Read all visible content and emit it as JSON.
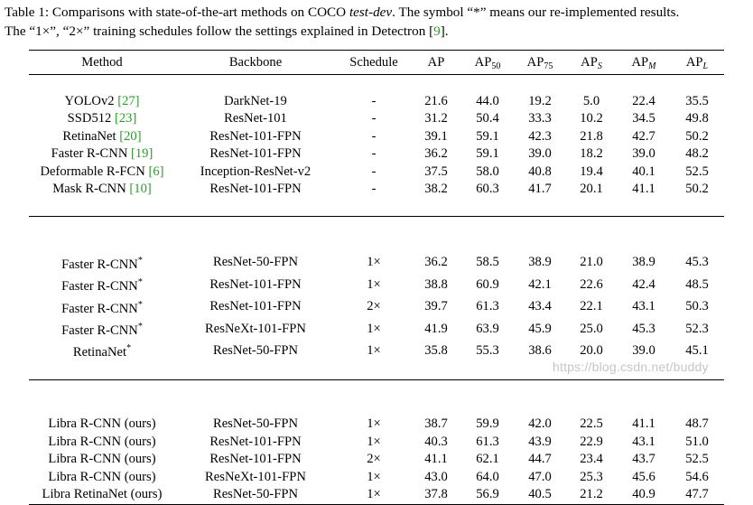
{
  "caption": {
    "prefix": "Table 1: Comparisons with state-of-the-art methods on COCO ",
    "italic": "test-dev",
    "suffix": ". The symbol “*” means our re-implemented results.",
    "line2_text": "The “1×”, “2×” training schedules follow the settings explained in Detectron [",
    "line2_ref": "9",
    "line2_end": "]."
  },
  "header": {
    "method": "Method",
    "backbone": "Backbone",
    "schedule": "Schedule",
    "ap": "AP",
    "ap50_base": "AP",
    "ap50_sub": "50",
    "ap75_base": "AP",
    "ap75_sub": "75",
    "aps_base": "AP",
    "aps_sub": "S",
    "apm_base": "AP",
    "apm_sub": "M",
    "apl_base": "AP",
    "apl_sub": "L"
  },
  "groups": [
    [
      {
        "method": "YOLOv2 ",
        "ref": "[27]",
        "backbone": "DarkNet-19",
        "schedule": "-",
        "ap": "21.6",
        "ap50": "44.0",
        "ap75": "19.2",
        "aps": "5.0",
        "apm": "22.4",
        "apl": "35.5"
      },
      {
        "method": "SSD512 ",
        "ref": "[23]",
        "backbone": "ResNet-101",
        "schedule": "-",
        "ap": "31.2",
        "ap50": "50.4",
        "ap75": "33.3",
        "aps": "10.2",
        "apm": "34.5",
        "apl": "49.8"
      },
      {
        "method": "RetinaNet ",
        "ref": "[20]",
        "backbone": "ResNet-101-FPN",
        "schedule": "-",
        "ap": "39.1",
        "ap50": "59.1",
        "ap75": "42.3",
        "aps": "21.8",
        "apm": "42.7",
        "apl": "50.2"
      },
      {
        "method": "Faster R-CNN ",
        "ref": "[19]",
        "backbone": "ResNet-101-FPN",
        "schedule": "-",
        "ap": "36.2",
        "ap50": "59.1",
        "ap75": "39.0",
        "aps": "18.2",
        "apm": "39.0",
        "apl": "48.2"
      },
      {
        "method": "Deformable R-FCN ",
        "ref": "[6]",
        "backbone": "Inception-ResNet-v2",
        "schedule": "-",
        "ap": "37.5",
        "ap50": "58.0",
        "ap75": "40.8",
        "aps": "19.4",
        "apm": "40.1",
        "apl": "52.5"
      },
      {
        "method": "Mask R-CNN ",
        "ref": "[10]",
        "backbone": "ResNet-101-FPN",
        "schedule": "-",
        "ap": "38.2",
        "ap50": "60.3",
        "ap75": "41.7",
        "aps": "20.1",
        "apm": "41.1",
        "apl": "50.2"
      }
    ],
    [
      {
        "method": "Faster R-CNN",
        "star": "*",
        "backbone": "ResNet-50-FPN",
        "schedule": "1×",
        "ap": "36.2",
        "ap50": "58.5",
        "ap75": "38.9",
        "aps": "21.0",
        "apm": "38.9",
        "apl": "45.3"
      },
      {
        "method": "Faster R-CNN",
        "star": "*",
        "backbone": "ResNet-101-FPN",
        "schedule": "1×",
        "ap": "38.8",
        "ap50": "60.9",
        "ap75": "42.1",
        "aps": "22.6",
        "apm": "42.4",
        "apl": "48.5"
      },
      {
        "method": "Faster R-CNN",
        "star": "*",
        "backbone": "ResNet-101-FPN",
        "schedule": "2×",
        "ap": "39.7",
        "ap50": "61.3",
        "ap75": "43.4",
        "aps": "22.1",
        "apm": "43.1",
        "apl": "50.3"
      },
      {
        "method": "Faster R-CNN",
        "star": "*",
        "backbone": "ResNeXt-101-FPN",
        "schedule": "1×",
        "ap": "41.9",
        "ap50": "63.9",
        "ap75": "45.9",
        "aps": "25.0",
        "apm": "45.3",
        "apl": "52.3"
      },
      {
        "method": "RetinaNet",
        "star": "*",
        "backbone": "ResNet-50-FPN",
        "schedule": "1×",
        "ap": "35.8",
        "ap50": "55.3",
        "ap75": "38.6",
        "aps": "20.0",
        "apm": "39.0",
        "apl": "45.1"
      }
    ],
    [
      {
        "method": "Libra R-CNN (ours)",
        "backbone": "ResNet-50-FPN",
        "schedule": "1×",
        "ap": "38.7",
        "ap50": "59.9",
        "ap75": "42.0",
        "aps": "22.5",
        "apm": "41.1",
        "apl": "48.7"
      },
      {
        "method": "Libra R-CNN (ours)",
        "backbone": "ResNet-101-FPN",
        "schedule": "1×",
        "ap": "40.3",
        "ap50": "61.3",
        "ap75": "43.9",
        "aps": "22.9",
        "apm": "43.1",
        "apl": "51.0"
      },
      {
        "method": "Libra R-CNN (ours)",
        "backbone": "ResNet-101-FPN",
        "schedule": "2×",
        "ap": "41.1",
        "ap50": "62.1",
        "ap75": "44.7",
        "aps": "23.4",
        "apm": "43.7",
        "apl": "52.5"
      },
      {
        "method": "Libra R-CNN (ours)",
        "backbone": "ResNeXt-101-FPN",
        "schedule": "1×",
        "ap": "43.0",
        "ap50": "64.0",
        "ap75": "47.0",
        "aps": "25.3",
        "apm": "45.6",
        "apl": "54.6"
      },
      {
        "method": "Libra RetinaNet (ours)",
        "backbone": "ResNet-50-FPN",
        "schedule": "1×",
        "ap": "37.8",
        "ap50": "56.9",
        "ap75": "40.5",
        "aps": "21.2",
        "apm": "40.9",
        "apl": "47.7"
      }
    ]
  ],
  "watermark": "https://blog.csdn.net/buddy"
}
